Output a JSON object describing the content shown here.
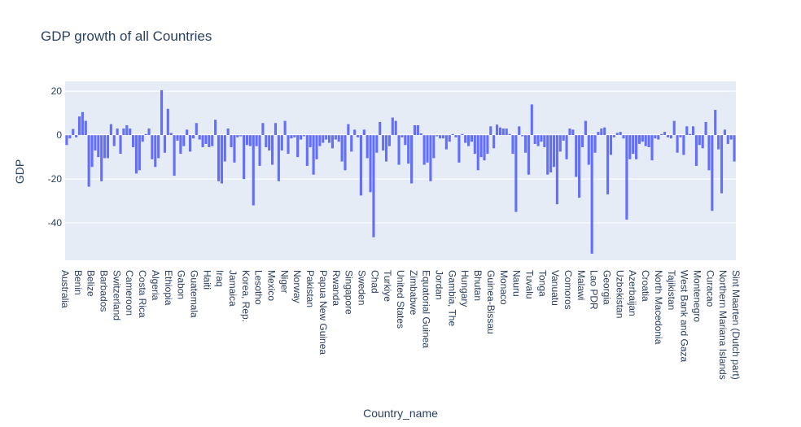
{
  "chart_data": {
    "type": "bar",
    "title": "GDP growth of all Countries",
    "xlabel": "Country_name",
    "ylabel": "GDP",
    "ylim": [
      -57,
      24.5
    ],
    "yticks": [
      20,
      0,
      -20,
      -40
    ],
    "grid": true,
    "colors": {
      "bar": "#636efa",
      "plot_bg": "#e5ecf6",
      "grid": "#ffffff",
      "text": "#2a3f5f"
    },
    "category_labels": [
      "Australia",
      "Benin",
      "Belize",
      "Barbados",
      "Switzerland",
      "Cameroon",
      "Costa Rica",
      "Algeria",
      "Ethiopia",
      "Gabon",
      "Guatemala",
      "Haiti",
      "Iraq",
      "Jamaica",
      "Korea, Rep.",
      "Lesotho",
      "Mexico",
      "Niger",
      "Norway",
      "Pakistan",
      "Papua New Guinea",
      "Rwanda",
      "Singapore",
      "Sweden",
      "Chad",
      "Turkiye",
      "United States",
      "Zimbabwe",
      "Equatorial Guinea",
      "Jordan",
      "Gambia, The",
      "Hungary",
      "Bhutan",
      "Guinea-Bissau",
      "Monaco",
      "Nauru",
      "Tuvalu",
      "Tonga",
      "Vanuatu",
      "Comoros",
      "Malawi",
      "Lao PDR",
      "Georgia",
      "Uzbekistan",
      "Azerbaijan",
      "Croatia",
      "North Macedonia",
      "Tajikistan",
      "West Bank and Gaza",
      "Montenegro",
      "Curacao",
      "Northern Mariana Islands",
      "Sint Maarten (Dutch part)"
    ],
    "values": [
      -4.5,
      -1.5,
      2.8,
      -1,
      8.5,
      10.5,
      6.5,
      -23.5,
      -14.5,
      -7,
      -10,
      -21,
      -10.5,
      -10.5,
      5,
      -5,
      3,
      -8.5,
      3,
      4.5,
      3,
      -5.5,
      -17.5,
      -16,
      -3,
      0.5,
      3,
      -11,
      -14.5,
      -10.5,
      20.5,
      -8,
      12,
      1,
      -18.5,
      -2.5,
      -8.5,
      -5,
      2.5,
      -7.5,
      -1.5,
      5.5,
      -2,
      -5.5,
      -4,
      -5.5,
      -5,
      7,
      -21,
      -22,
      -12,
      3,
      -5.5,
      -12.5,
      -1,
      -0.5,
      -20,
      -4.5,
      -5,
      -32,
      -5,
      -14,
      5.5,
      -5.5,
      -7,
      -13.5,
      5.5,
      -21,
      -7,
      6.5,
      -8.5,
      -1.5,
      -1,
      -10,
      -2,
      -0.5,
      -14,
      -5.5,
      -18,
      -11,
      -5,
      -3.5,
      -2,
      -3.5,
      -6,
      -2,
      -3,
      -12,
      -16,
      5,
      -7.5,
      2.5,
      -1,
      -27.5,
      2.5,
      -10.5,
      -26,
      -46.5,
      -8,
      6,
      -7,
      -12,
      -5,
      8,
      6.5,
      -13.5,
      -1,
      -4.5,
      -13,
      -22,
      4.5,
      4.5,
      0.8,
      -13.5,
      -12.5,
      -21,
      -10.5,
      -0.5,
      -1.5,
      -1.5,
      -6.5,
      -3,
      0.5,
      -1,
      -12.5,
      0.5,
      -3.5,
      -5,
      -3,
      -8.5,
      -16,
      -10,
      -11.5,
      -8.5,
      4,
      -6,
      4.8,
      3.5,
      3,
      3,
      0.5,
      -8.5,
      -35,
      4,
      -0.5,
      -8,
      -18,
      14,
      -4,
      -5,
      -3,
      -5.5,
      -18,
      -17,
      -14.5,
      -31.5,
      -7.5,
      -2.5,
      -11,
      3,
      2.5,
      -19,
      -28.5,
      -5.5,
      6.5,
      -13.5,
      -54,
      -8,
      1.5,
      3,
      3.5,
      -27,
      -9,
      -1,
      1,
      1.5,
      -1.5,
      -38.5,
      -11,
      -8.5,
      -11,
      -4,
      -3,
      -5,
      -5.5,
      -11.5,
      -1.5,
      -2,
      0.5,
      1.5,
      -1,
      -1.5,
      6.5,
      -8,
      -1,
      -9,
      4,
      0.5,
      4,
      -14,
      -4.5,
      -6,
      6,
      -16,
      -34.5,
      11.5,
      -6.5,
      -26.5,
      2.5,
      -4,
      -2,
      -12
    ]
  }
}
